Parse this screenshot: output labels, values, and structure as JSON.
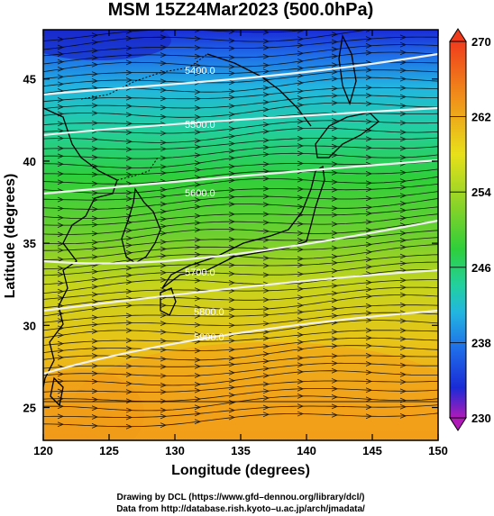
{
  "title": "MSM 15Z24Mar2023 (500.0hPa)",
  "xlabel": "Longitude (degrees)",
  "ylabel": "Latitude  (degrees)",
  "xticks": [
    "120",
    "125",
    "130",
    "135",
    "140",
    "145",
    "150"
  ],
  "yticks": [
    "25",
    "30",
    "35",
    "40",
    "45"
  ],
  "colorbar": {
    "min": 230,
    "max": 270,
    "labels": [
      "270",
      "262",
      "254",
      "246",
      "238",
      "230"
    ]
  },
  "contour_labels": [
    "5400.0",
    "5500.0",
    "5600.0",
    "5700.0",
    "5800.0",
    "5900.0"
  ],
  "credit_line1": "Drawing by DCL (https://www.gfd–dennou.org/library/dcl/)",
  "credit_line2": "Data from http://database.rish.kyoto–u.ac.jp/arch/jmadata/",
  "map_data": {
    "lon_range": [
      120,
      150
    ],
    "lat_range": [
      23,
      48
    ],
    "field": "temperature",
    "contour_field": "geopotential height"
  },
  "colors": {
    "cold": "#1a2bd6",
    "mid": "#2fcf3a",
    "warm": "#f29a1a",
    "contour": "#f0f0f0"
  }
}
